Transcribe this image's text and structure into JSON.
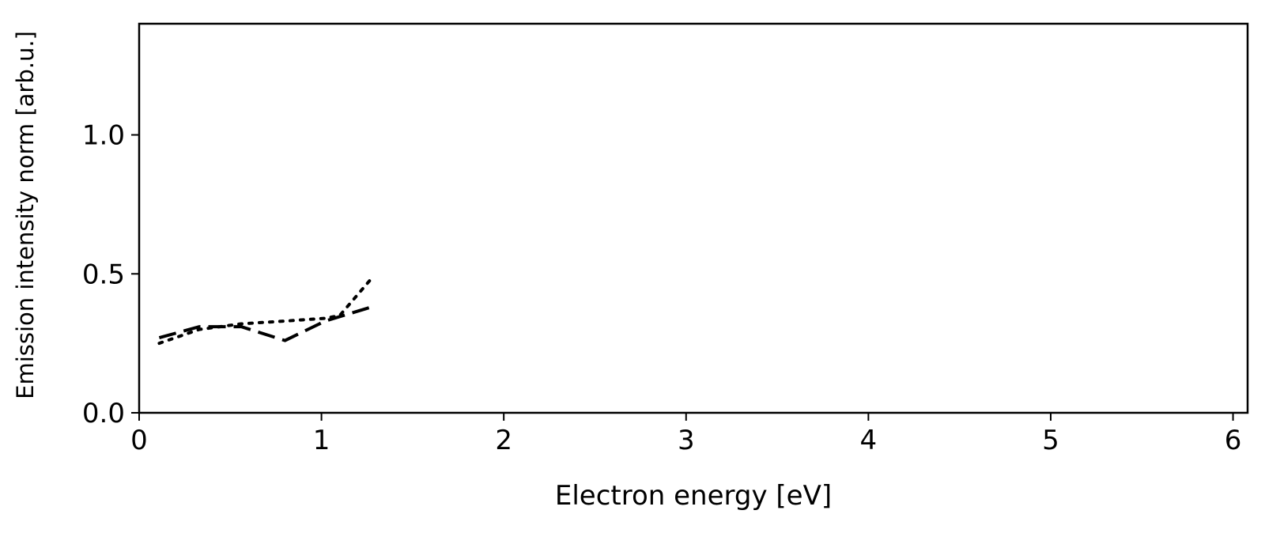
{
  "chart_data": {
    "type": "line",
    "title": "",
    "xlabel": "Electron energy [eV]",
    "ylabel": "Emission intensity norm [arb.u.]",
    "xlim": [
      0,
      6.08
    ],
    "ylim": [
      0,
      1.4
    ],
    "xticks": [
      0,
      1,
      2,
      3,
      4,
      5,
      6
    ],
    "xtick_labels": [
      "0",
      "1",
      "2",
      "3",
      "4",
      "5",
      "6"
    ],
    "yticks": [
      0.0,
      0.5,
      1.0
    ],
    "ytick_labels": [
      "0.0",
      "0.5",
      "1.0"
    ],
    "grid": false,
    "legend": null,
    "series": [
      {
        "style": "dashed",
        "color": "#000000",
        "x": [
          0.11,
          0.33,
          0.56,
          0.8,
          1.02,
          1.27
        ],
        "y": [
          0.27,
          0.31,
          0.31,
          0.26,
          0.33,
          0.38
        ]
      },
      {
        "style": "dotted",
        "color": "#000000",
        "x": [
          0.11,
          0.33,
          0.56,
          0.8,
          1.02,
          1.1,
          1.27
        ],
        "y": [
          0.25,
          0.3,
          0.32,
          0.33,
          0.34,
          0.35,
          0.48
        ]
      }
    ]
  }
}
